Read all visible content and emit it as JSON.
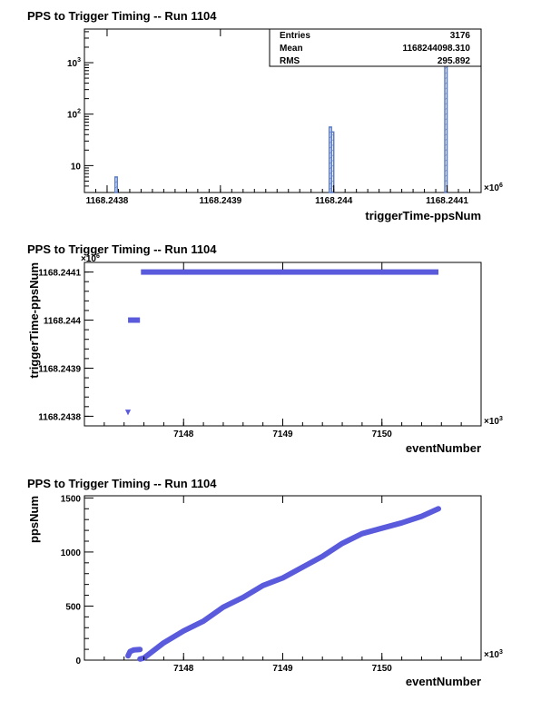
{
  "chart_data": [
    {
      "type": "bar",
      "title": "PPS to Trigger Timing -- Run 1104",
      "xlabel": "triggerTime-ppsNum",
      "ylabel": "",
      "x_multiplier": "×10",
      "x_multiplier_exp": "6",
      "xlim": [
        1168.24378,
        1168.24413
      ],
      "ylim_log": [
        3,
        4500
      ],
      "yscale": "log",
      "x_ticks": [
        "1168.2438",
        "1168.2439",
        "1168.244",
        "1168.2441"
      ],
      "x_tick_values": [
        1168.2438,
        1168.2439,
        1168.244,
        1168.2441
      ],
      "y_ticks": [
        {
          "base": "10",
          "exp": "",
          "value": 10
        },
        {
          "base": "10",
          "exp": "2",
          "value": 100
        },
        {
          "base": "10",
          "exp": "3",
          "value": 1000
        }
      ],
      "bins": [
        {
          "lo": 1168.243807,
          "hi": 1168.243809,
          "count": 6
        },
        {
          "lo": 1168.243996,
          "hi": 1168.243998,
          "count": 56
        },
        {
          "lo": 1168.243998,
          "hi": 1168.244,
          "count": 45
        },
        {
          "lo": 1168.244098,
          "hi": 1168.2441,
          "count": 3000
        }
      ],
      "stats": [
        {
          "label": "Entries",
          "value": "3176"
        },
        {
          "label": "Mean",
          "value": "1168244098.310"
        },
        {
          "label": "RMS",
          "value": "295.892"
        }
      ],
      "color": "#5b7cc0"
    },
    {
      "type": "scatter",
      "title": "PPS to Trigger Timing -- Run 1104",
      "xlabel": "eventNumber",
      "ylabel": "triggerTime-ppsNum",
      "x_multiplier": "×10",
      "x_multiplier_exp": "3",
      "y_multiplier": "×10",
      "y_multiplier_exp": "6",
      "xlim": [
        7147.0,
        7151.0
      ],
      "ylim": [
        1168.24378,
        1168.24412
      ],
      "x_ticks": [
        "7148",
        "7149",
        "7150"
      ],
      "x_tick_values": [
        7148,
        7149,
        7150
      ],
      "y_ticks": [
        "1168.2438",
        "1168.2439",
        "1168.244",
        "1168.2441"
      ],
      "y_tick_values": [
        1168.2438,
        1168.2439,
        1168.244,
        1168.2441
      ],
      "segments": [
        {
          "x0": 7147.44,
          "x1": 7147.44,
          "y": 1168.24381
        },
        {
          "x0": 7147.44,
          "x1": 7147.56,
          "y": 1168.244
        },
        {
          "x0": 7147.57,
          "x1": 7150.57,
          "y": 1168.2441
        }
      ],
      "color": "#5a5adc"
    },
    {
      "type": "scatter",
      "title": "PPS to Trigger Timing -- Run 1104",
      "xlabel": "eventNumber",
      "ylabel": "ppsNum",
      "x_multiplier": "×10",
      "x_multiplier_exp": "3",
      "xlim": [
        7147.0,
        7151.0
      ],
      "ylim": [
        0,
        1520
      ],
      "x_ticks": [
        "7148",
        "7149",
        "7150"
      ],
      "x_tick_values": [
        7148,
        7149,
        7150
      ],
      "y_ticks": [
        "0",
        "500",
        "1000",
        "1500"
      ],
      "y_tick_values": [
        0,
        500,
        1000,
        1500
      ],
      "curve": [
        [
          7147.44,
          40
        ],
        [
          7147.46,
          80
        ],
        [
          7147.5,
          95
        ],
        [
          7147.56,
          98
        ],
        [
          7147.56,
          10
        ],
        [
          7147.6,
          20
        ],
        [
          7147.7,
          90
        ],
        [
          7147.8,
          160
        ],
        [
          7148.0,
          270
        ],
        [
          7148.2,
          360
        ],
        [
          7148.4,
          490
        ],
        [
          7148.6,
          580
        ],
        [
          7148.8,
          690
        ],
        [
          7149.0,
          760
        ],
        [
          7149.2,
          860
        ],
        [
          7149.4,
          960
        ],
        [
          7149.6,
          1080
        ],
        [
          7149.8,
          1170
        ],
        [
          7150.0,
          1220
        ],
        [
          7150.2,
          1270
        ],
        [
          7150.4,
          1330
        ],
        [
          7150.57,
          1400
        ]
      ],
      "color": "#5a5adc"
    }
  ]
}
